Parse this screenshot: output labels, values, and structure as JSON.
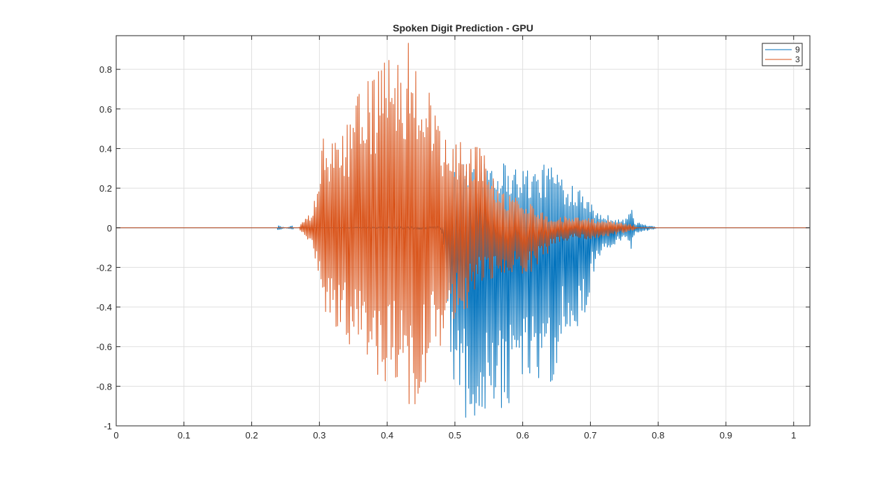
{
  "chart_data": {
    "type": "line",
    "title": "Spoken Digit Prediction - GPU",
    "xlabel": "",
    "ylabel": "",
    "xlim": [
      0,
      1.024
    ],
    "ylim": [
      -1,
      0.97
    ],
    "grid": true,
    "legend_position": "top-right",
    "x_ticks": [
      0,
      0.1,
      0.2,
      0.3,
      0.4,
      0.5,
      0.6,
      0.7,
      0.8,
      0.9,
      1
    ],
    "x_tick_labels": [
      "0",
      "0.1",
      "0.2",
      "0.3",
      "0.4",
      "0.5",
      "0.6",
      "0.7",
      "0.8",
      "0.9",
      "1"
    ],
    "y_ticks": [
      -1,
      -0.8,
      -0.6,
      -0.4,
      -0.2,
      0,
      0.2,
      0.4,
      0.6,
      0.8
    ],
    "y_tick_labels": [
      "-1",
      "-0.8",
      "-0.6",
      "-0.4",
      "-0.2",
      "0",
      "0.2",
      "0.4",
      "0.6",
      "0.8"
    ],
    "series": [
      {
        "name": "9",
        "color": "#0072BD",
        "envelope": [
          [
            0.0,
            0.0,
            0.0
          ],
          [
            0.238,
            0.0,
            0.0
          ],
          [
            0.239,
            0.03,
            -0.03
          ],
          [
            0.241,
            0.01,
            -0.01
          ],
          [
            0.25,
            0.0,
            0.0
          ],
          [
            0.26,
            0.01,
            -0.01
          ],
          [
            0.262,
            0.0,
            0.0
          ],
          [
            0.3,
            0.0,
            0.0
          ],
          [
            0.48,
            0.01,
            -0.01
          ],
          [
            0.5,
            0.3,
            -0.9
          ],
          [
            0.52,
            0.34,
            -0.98
          ],
          [
            0.55,
            0.38,
            -0.96
          ],
          [
            0.58,
            0.33,
            -0.92
          ],
          [
            0.6,
            0.31,
            -0.84
          ],
          [
            0.62,
            0.3,
            -0.78
          ],
          [
            0.645,
            0.34,
            -0.8
          ],
          [
            0.66,
            0.25,
            -0.62
          ],
          [
            0.69,
            0.22,
            -0.46
          ],
          [
            0.71,
            0.08,
            -0.16
          ],
          [
            0.73,
            0.06,
            -0.1
          ],
          [
            0.75,
            0.04,
            -0.05
          ],
          [
            0.76,
            0.11,
            -0.12
          ],
          [
            0.765,
            0.03,
            -0.03
          ],
          [
            0.79,
            0.01,
            -0.01
          ],
          [
            0.8,
            0.0,
            0.0
          ],
          [
            1.024,
            0.0,
            0.0
          ]
        ]
      },
      {
        "name": "3",
        "color": "#D95319",
        "envelope": [
          [
            0.0,
            0.0,
            0.0
          ],
          [
            0.27,
            0.0,
            0.0
          ],
          [
            0.272,
            0.02,
            -0.02
          ],
          [
            0.28,
            0.05,
            -0.06
          ],
          [
            0.29,
            0.08,
            -0.07
          ],
          [
            0.3,
            0.3,
            -0.3
          ],
          [
            0.305,
            0.46,
            -0.41
          ],
          [
            0.33,
            0.45,
            -0.58
          ],
          [
            0.35,
            0.63,
            -0.6
          ],
          [
            0.38,
            0.82,
            -0.75
          ],
          [
            0.4,
            0.84,
            -0.78
          ],
          [
            0.42,
            0.95,
            -0.85
          ],
          [
            0.43,
            0.97,
            -1.0
          ],
          [
            0.45,
            0.84,
            -0.88
          ],
          [
            0.47,
            0.66,
            -0.6
          ],
          [
            0.48,
            0.55,
            -0.62
          ],
          [
            0.49,
            0.4,
            -0.5
          ],
          [
            0.5,
            0.46,
            -0.48
          ],
          [
            0.52,
            0.45,
            -0.4
          ],
          [
            0.54,
            0.4,
            -0.3
          ],
          [
            0.56,
            0.28,
            -0.25
          ],
          [
            0.58,
            0.16,
            -0.22
          ],
          [
            0.6,
            0.15,
            -0.26
          ],
          [
            0.62,
            0.11,
            -0.22
          ],
          [
            0.64,
            0.05,
            -0.12
          ],
          [
            0.67,
            0.06,
            -0.06
          ],
          [
            0.7,
            0.05,
            -0.06
          ],
          [
            0.73,
            0.04,
            -0.04
          ],
          [
            0.76,
            0.02,
            -0.02
          ],
          [
            0.77,
            0.0,
            0.0
          ],
          [
            1.024,
            0.0,
            0.0
          ]
        ]
      }
    ]
  }
}
